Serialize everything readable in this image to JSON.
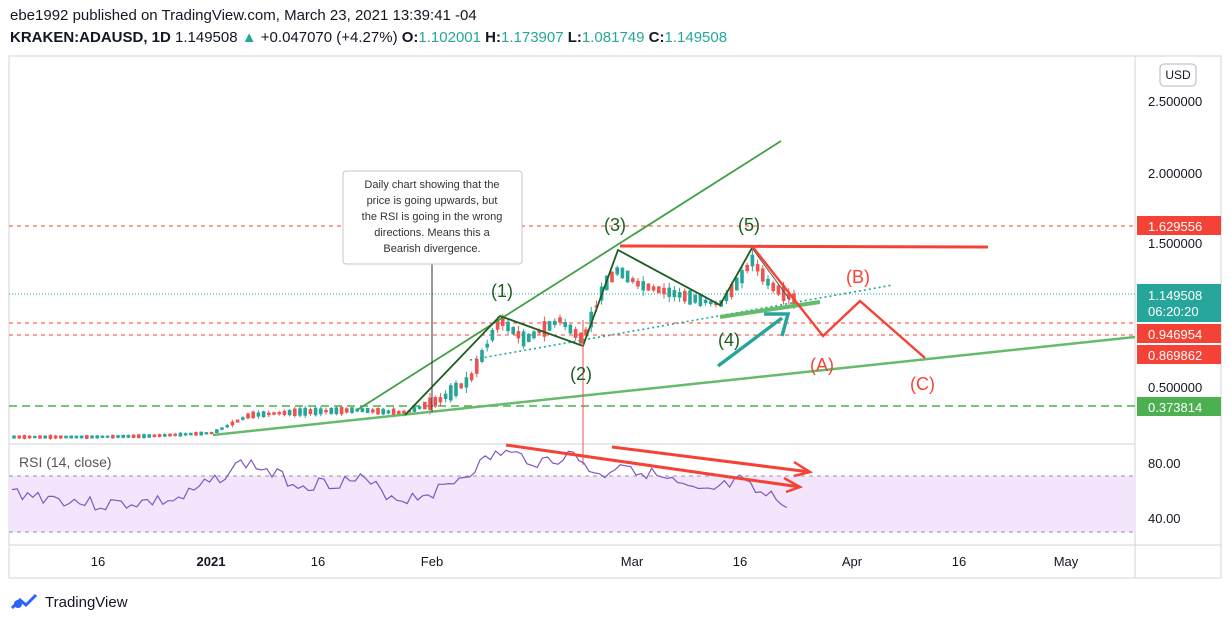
{
  "header": {
    "publish_line": "ebe1992 published on TradingView.com, March 23, 2021 13:39:41 -04",
    "symbol": "KRAKEN:ADAUSD, 1D",
    "last": "1.149508",
    "change": "+0.047070 (+4.27%)",
    "o_label": "O:",
    "o_value": "1.102001",
    "h_label": "H:",
    "h_value": "1.173907",
    "l_label": "L:",
    "l_value": "1.081749",
    "c_label": "C:",
    "c_value": "1.149508"
  },
  "currency_button": "USD",
  "footer": {
    "brand": "TradingView"
  },
  "colors": {
    "up": "#26a69a",
    "down": "#ef5350",
    "red_line": "#f44336",
    "green_line": "#66bb6a",
    "dark_green": "#1b5e20",
    "rsi": "#7e57c2"
  },
  "callout": {
    "lines": [
      "Daily chart showing that the",
      "price is going upwards, but",
      "the RSI is going in the wrong",
      "directions. Means this a",
      "Bearish divergence."
    ]
  },
  "wave_labels": [
    "(1)",
    "(2)",
    "(3)",
    "(4)",
    "(5)",
    "(A)",
    "(B)",
    "(C)"
  ],
  "rsi_title": "RSI (14, close)",
  "chart_data": {
    "type": "candlestick",
    "y_axis": {
      "ticks": [
        "2.500000",
        "2.000000",
        "1.500000",
        "0.500000"
      ],
      "scale": "log"
    },
    "price_levels": [
      {
        "label": "1.629556",
        "value": 1.629556,
        "style": "dashed",
        "color": "#f44336"
      },
      {
        "label": "1.149508",
        "value": 1.149508,
        "style": "dotted",
        "color": "#26a69a",
        "countdown": "06:20:20"
      },
      {
        "label": "0.946954",
        "value": 0.946954,
        "style": "dashed",
        "color": "#f44336"
      },
      {
        "label": "0.869862",
        "value": 0.869862,
        "style": "dashed",
        "color": "#f44336"
      },
      {
        "label": "0.373814",
        "value": 0.373814,
        "style": "dashed",
        "color": "#4caf50"
      }
    ],
    "x_axis": {
      "ticks": [
        "16",
        "2021",
        "16",
        "Feb",
        "Mar",
        "16",
        "Apr",
        "16",
        "May"
      ]
    },
    "rsi": {
      "ticks": [
        "80.00",
        "40.00"
      ],
      "band": [
        30,
        70
      ]
    }
  }
}
